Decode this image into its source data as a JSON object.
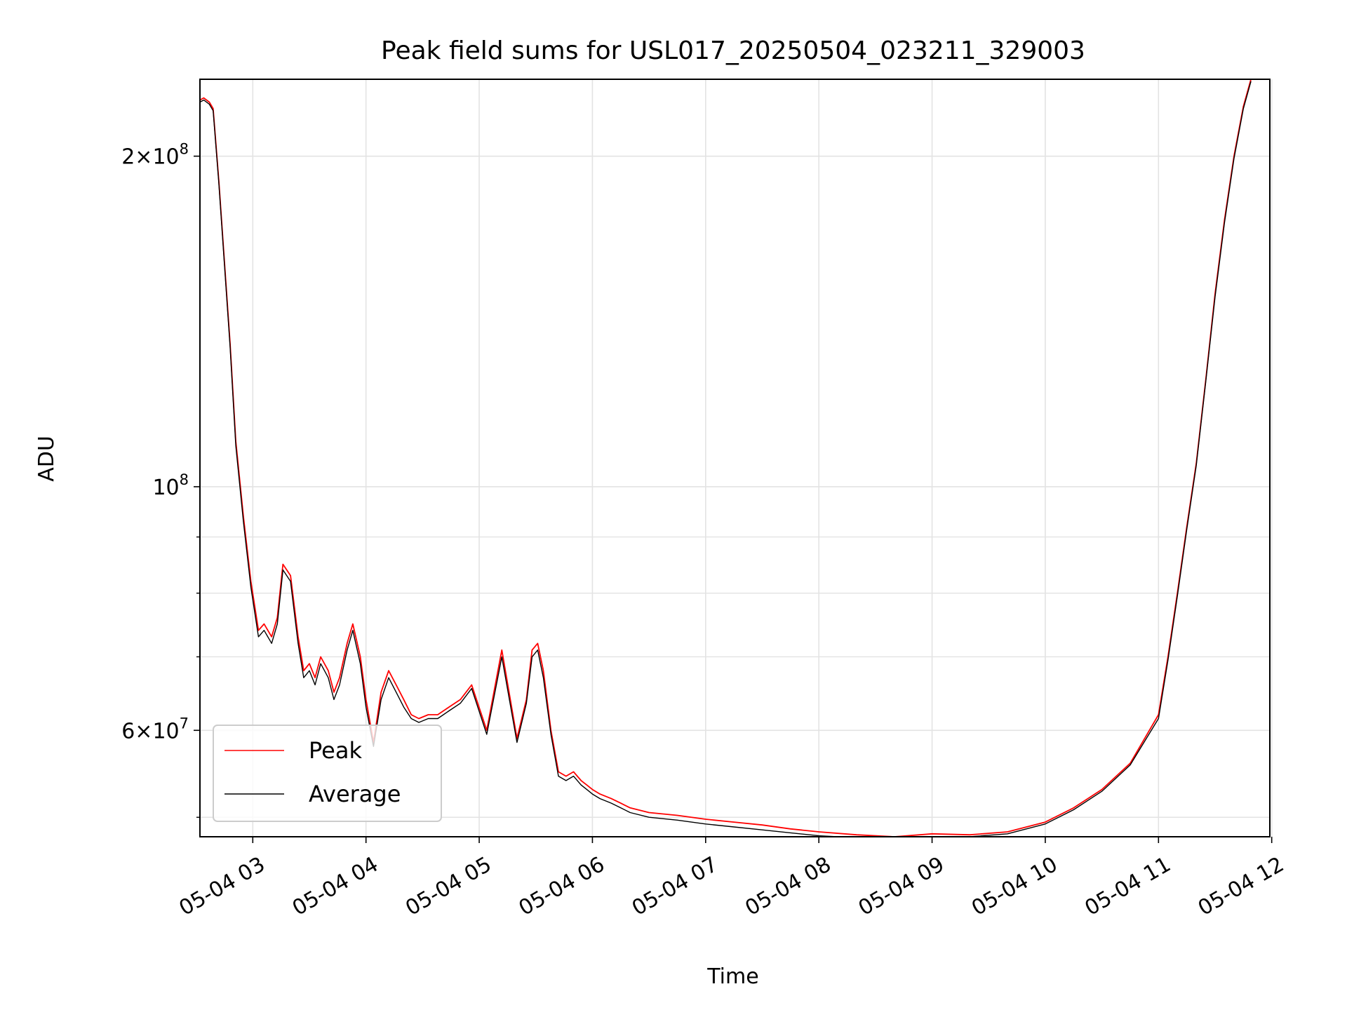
{
  "chart_data": {
    "type": "line",
    "title": "Peak field sums for USL017_20250504_023211_329003",
    "xlabel": "Time",
    "ylabel": "ADU",
    "y_scale": "log",
    "grid": true,
    "legend_placement": "lower left",
    "xlim": [
      "2025-05-04 02:32",
      "2025-05-04 11:59"
    ],
    "ylim": [
      48000000,
      235000000
    ],
    "x_ticks": [
      "05-04 03",
      "05-04 04",
      "05-04 05",
      "05-04 06",
      "05-04 07",
      "05-04 08",
      "05-04 09",
      "05-04 10",
      "05-04 11",
      "05-04 12"
    ],
    "y_tick_labels": [
      {
        "value": 200000000,
        "mantissa": "2",
        "exponent": "8"
      },
      {
        "value": 100000000,
        "mantissa": "",
        "exponent": "8"
      },
      {
        "value": 60000000,
        "mantissa": "6",
        "exponent": "7"
      }
    ],
    "y_minor_ticks": [
      50000000,
      70000000,
      80000000,
      90000000
    ],
    "series": [
      {
        "name": "Peak",
        "color": "#ff0000",
        "x": [
          "2025-05-04 02:32",
          "2025-05-04 02:34",
          "2025-05-04 02:37",
          "2025-05-04 02:39",
          "2025-05-04 02:42",
          "2025-05-04 02:45",
          "2025-05-04 02:48",
          "2025-05-04 02:51",
          "2025-05-04 02:55",
          "2025-05-04 02:59",
          "2025-05-04 03:03",
          "2025-05-04 03:06",
          "2025-05-04 03:10",
          "2025-05-04 03:13",
          "2025-05-04 03:16",
          "2025-05-04 03:20",
          "2025-05-04 03:24",
          "2025-05-04 03:27",
          "2025-05-04 03:30",
          "2025-05-04 03:33",
          "2025-05-04 03:36",
          "2025-05-04 03:40",
          "2025-05-04 03:43",
          "2025-05-04 03:46",
          "2025-05-04 03:50",
          "2025-05-04 03:53",
          "2025-05-04 03:57",
          "2025-05-04 04:00",
          "2025-05-04 04:04",
          "2025-05-04 04:08",
          "2025-05-04 04:12",
          "2025-05-04 04:16",
          "2025-05-04 04:20",
          "2025-05-04 04:24",
          "2025-05-04 04:28",
          "2025-05-04 04:33",
          "2025-05-04 04:38",
          "2025-05-04 04:44",
          "2025-05-04 04:50",
          "2025-05-04 04:56",
          "2025-05-04 05:04",
          "2025-05-04 05:12",
          "2025-05-04 05:20",
          "2025-05-04 05:25",
          "2025-05-04 05:28",
          "2025-05-04 05:31",
          "2025-05-04 05:34",
          "2025-05-04 05:38",
          "2025-05-04 05:42",
          "2025-05-04 05:46",
          "2025-05-04 05:50",
          "2025-05-04 05:54",
          "2025-05-04 05:57",
          "2025-05-04 06:00",
          "2025-05-04 06:04",
          "2025-05-04 06:10",
          "2025-05-04 06:15",
          "2025-05-04 06:20",
          "2025-05-04 06:30",
          "2025-05-04 06:45",
          "2025-05-04 07:00",
          "2025-05-04 07:15",
          "2025-05-04 07:30",
          "2025-05-04 07:45",
          "2025-05-04 08:00",
          "2025-05-04 08:20",
          "2025-05-04 08:40",
          "2025-05-04 09:00",
          "2025-05-04 09:20",
          "2025-05-04 09:40",
          "2025-05-04 10:00",
          "2025-05-04 10:15",
          "2025-05-04 10:30",
          "2025-05-04 10:45",
          "2025-05-04 11:00",
          "2025-05-04 11:05",
          "2025-05-04 11:10",
          "2025-05-04 11:15",
          "2025-05-04 11:20",
          "2025-05-04 11:25",
          "2025-05-04 11:30",
          "2025-05-04 11:35",
          "2025-05-04 11:40",
          "2025-05-04 11:45",
          "2025-05-04 11:49"
        ],
        "y": [
          225000000,
          226000000,
          224000000,
          221000000,
          190000000,
          160000000,
          135000000,
          110000000,
          94000000,
          82000000,
          74000000,
          75000000,
          73000000,
          76000000,
          85000000,
          83000000,
          73000000,
          68000000,
          69000000,
          67000000,
          70000000,
          68000000,
          65000000,
          67000000,
          72000000,
          75000000,
          70000000,
          64000000,
          58500000,
          65000000,
          68000000,
          66000000,
          64000000,
          62000000,
          61500000,
          62000000,
          62000000,
          63000000,
          64000000,
          66000000,
          60000000,
          71000000,
          59000000,
          64000000,
          71000000,
          72000000,
          68000000,
          60000000,
          55000000,
          54500000,
          55000000,
          54000000,
          53500000,
          53000000,
          52500000,
          52000000,
          51500000,
          51000000,
          50500000,
          50200000,
          49800000,
          49500000,
          49200000,
          48800000,
          48500000,
          48200000,
          48000000,
          48300000,
          48200000,
          48500000,
          49500000,
          51000000,
          53000000,
          56000000,
          62000000,
          70000000,
          80000000,
          92000000,
          105000000,
          125000000,
          150000000,
          175000000,
          200000000,
          222000000,
          235000000
        ]
      },
      {
        "name": "Average",
        "color": "#000000",
        "x": [
          "2025-05-04 02:32",
          "2025-05-04 02:34",
          "2025-05-04 02:37",
          "2025-05-04 02:39",
          "2025-05-04 02:42",
          "2025-05-04 02:45",
          "2025-05-04 02:48",
          "2025-05-04 02:51",
          "2025-05-04 02:55",
          "2025-05-04 02:59",
          "2025-05-04 03:03",
          "2025-05-04 03:06",
          "2025-05-04 03:10",
          "2025-05-04 03:13",
          "2025-05-04 03:16",
          "2025-05-04 03:20",
          "2025-05-04 03:24",
          "2025-05-04 03:27",
          "2025-05-04 03:30",
          "2025-05-04 03:33",
          "2025-05-04 03:36",
          "2025-05-04 03:40",
          "2025-05-04 03:43",
          "2025-05-04 03:46",
          "2025-05-04 03:50",
          "2025-05-04 03:53",
          "2025-05-04 03:57",
          "2025-05-04 04:00",
          "2025-05-04 04:04",
          "2025-05-04 04:08",
          "2025-05-04 04:12",
          "2025-05-04 04:16",
          "2025-05-04 04:20",
          "2025-05-04 04:24",
          "2025-05-04 04:28",
          "2025-05-04 04:33",
          "2025-05-04 04:38",
          "2025-05-04 04:44",
          "2025-05-04 04:50",
          "2025-05-04 04:56",
          "2025-05-04 05:04",
          "2025-05-04 05:12",
          "2025-05-04 05:20",
          "2025-05-04 05:25",
          "2025-05-04 05:28",
          "2025-05-04 05:31",
          "2025-05-04 05:34",
          "2025-05-04 05:38",
          "2025-05-04 05:42",
          "2025-05-04 05:46",
          "2025-05-04 05:50",
          "2025-05-04 05:54",
          "2025-05-04 05:57",
          "2025-05-04 06:00",
          "2025-05-04 06:04",
          "2025-05-04 06:10",
          "2025-05-04 06:15",
          "2025-05-04 06:20",
          "2025-05-04 06:30",
          "2025-05-04 06:45",
          "2025-05-04 07:00",
          "2025-05-04 07:15",
          "2025-05-04 07:30",
          "2025-05-04 07:45",
          "2025-05-04 08:00",
          "2025-05-04 08:20",
          "2025-05-04 08:40",
          "2025-05-04 09:00",
          "2025-05-04 09:20",
          "2025-05-04 09:40",
          "2025-05-04 10:00",
          "2025-05-04 10:15",
          "2025-05-04 10:30",
          "2025-05-04 10:45",
          "2025-05-04 11:00",
          "2025-05-04 11:05",
          "2025-05-04 11:10",
          "2025-05-04 11:15",
          "2025-05-04 11:20",
          "2025-05-04 11:25",
          "2025-05-04 11:30",
          "2025-05-04 11:35",
          "2025-05-04 11:40",
          "2025-05-04 11:45",
          "2025-05-04 11:49"
        ],
        "y": [
          224000000,
          225000000,
          223000000,
          220000000,
          189000000,
          159000000,
          134000000,
          109000000,
          93000000,
          81000000,
          73000000,
          74000000,
          72000000,
          75000000,
          84000000,
          82000000,
          72000000,
          67000000,
          68000000,
          66000000,
          69000000,
          67000000,
          64000000,
          66000000,
          71000000,
          74000000,
          69000000,
          63000000,
          58000000,
          64000000,
          67000000,
          65000000,
          63000000,
          61500000,
          61000000,
          61500000,
          61500000,
          62500000,
          63500000,
          65500000,
          59500000,
          70000000,
          58500000,
          63500000,
          70000000,
          71000000,
          67000000,
          59500000,
          54500000,
          54000000,
          54500000,
          53500000,
          53000000,
          52500000,
          52000000,
          51500000,
          51000000,
          50500000,
          50000000,
          49700000,
          49300000,
          49000000,
          48700000,
          48400000,
          48100000,
          47900000,
          47800000,
          48000000,
          48000000,
          48300000,
          49300000,
          50800000,
          52800000,
          55800000,
          61500000,
          69500000,
          79500000,
          91500000,
          104500000,
          124500000,
          149000000,
          174000000,
          199000000,
          221000000,
          234000000
        ]
      }
    ]
  }
}
